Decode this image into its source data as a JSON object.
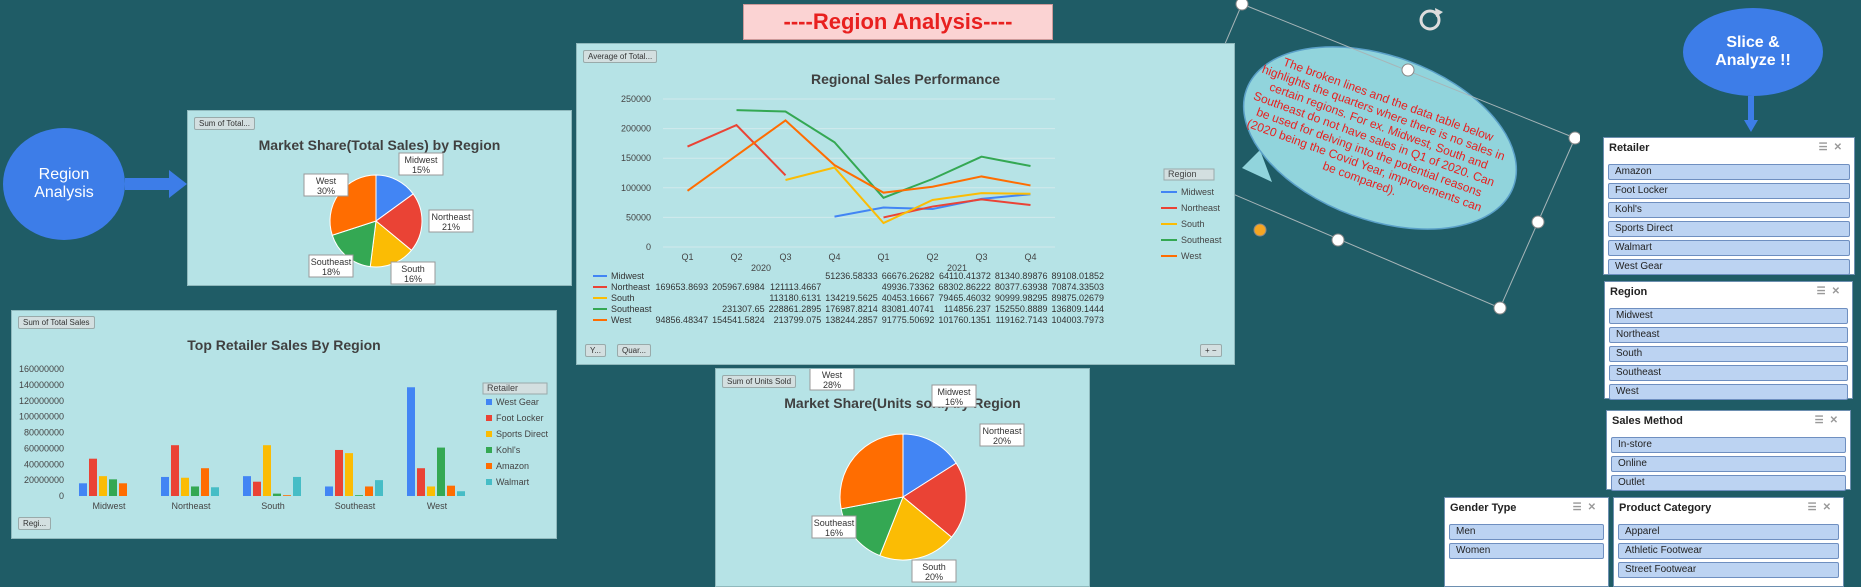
{
  "page_title": "----Region Analysis----",
  "left_bubble": "Region Analysis",
  "right_bubble": "Slice & Analyze !!",
  "callout": "The broken lines and the data table below highlights the quarters where there is no sales in certain regions. For ex. Midwest, South and Southeast do not have sales in Q1 of 2020. Can be used for delving into the potential reasons (2020 being the Covid Year, improvements can be compared).",
  "colors": {
    "Midwest": "#4285f4",
    "Northeast": "#ea4335",
    "South": "#fbbc04",
    "Southeast": "#34a853",
    "West": "#ff6d01",
    "Walmart": "#46bdc6"
  },
  "chart_data": [
    {
      "type": "pie",
      "field_button": "Sum of Total...",
      "title": "Market Share(Total Sales) by Region",
      "labels": [
        "Midwest",
        "Northeast",
        "South",
        "Southeast",
        "West"
      ],
      "values": [
        15,
        21,
        16,
        18,
        30
      ],
      "value_labels": [
        "15%",
        "21%",
        "16%",
        "18%",
        "30%"
      ]
    },
    {
      "type": "line",
      "field_button": "Average of Total...",
      "title": "Regional Sales Performance",
      "years": [
        "2020",
        "2021"
      ],
      "categories": [
        "Q1",
        "Q2",
        "Q3",
        "Q4",
        "Q1",
        "Q2",
        "Q3",
        "Q4"
      ],
      "yticks": [
        "250000",
        "200000",
        "150000",
        "100000",
        "50000",
        "0"
      ],
      "ylim": [
        0,
        250000
      ],
      "legend_button": "Region",
      "axis_buttons": [
        "Y...",
        "Quar..."
      ],
      "series": [
        {
          "name": "Midwest",
          "values": [
            null,
            null,
            null,
            51236.58333,
            66676.26282,
            64110.41372,
            81340.89876,
            89108.01852
          ],
          "labels": [
            "",
            "",
            "",
            "51236.58333",
            "66676.26282",
            "64110.41372",
            "81340.89876",
            "89108.01852"
          ]
        },
        {
          "name": "Northeast",
          "values": [
            169653.8693,
            205967.6984,
            121113.4667,
            null,
            49936.73362,
            68302.86222,
            80377.63938,
            70874.33503
          ],
          "labels": [
            "169653.8693",
            "205967.6984",
            "121113.4667",
            "",
            "49936.73362",
            "68302.86222",
            "80377.63938",
            "70874.33503"
          ]
        },
        {
          "name": "South",
          "values": [
            null,
            null,
            113180.6131,
            134219.5625,
            40453.16667,
            79465.46032,
            90999.98295,
            89875.02679
          ],
          "labels": [
            "",
            "",
            "113180.6131",
            "134219.5625",
            "40453.16667",
            "79465.46032",
            "90999.98295",
            "89875.02679"
          ]
        },
        {
          "name": "Southeast",
          "values": [
            null,
            231307.65,
            228861.2895,
            176987.8214,
            83081.40741,
            114856.237,
            152550.8889,
            136809.1444
          ],
          "labels": [
            "",
            "231307.65",
            "228861.2895",
            "176987.8214",
            "83081.40741",
            "114856.237",
            "152550.8889",
            "136809.1444"
          ]
        },
        {
          "name": "West",
          "values": [
            94856.48347,
            154541.5824,
            213799.075,
            138244.2857,
            91775.50692,
            101760.1351,
            119162.7143,
            104003.7973
          ],
          "labels": [
            "94856.48347",
            "154541.5824",
            "213799.075",
            "138244.2857",
            "91775.50692",
            "101760.1351",
            "119162.7143",
            "104003.7973"
          ]
        }
      ]
    },
    {
      "type": "bar",
      "field_button": "Sum of Total Sales",
      "title": "Top Retailer Sales By Region",
      "categories": [
        "Midwest",
        "Northeast",
        "South",
        "Southeast",
        "West"
      ],
      "yticks": [
        "160000000",
        "140000000",
        "120000000",
        "100000000",
        "80000000",
        "60000000",
        "40000000",
        "20000000",
        "0"
      ],
      "ylim": [
        0,
        160000000
      ],
      "legend_button": "Retailer",
      "axis_button": "Regi...",
      "series": [
        {
          "name": "West Gear",
          "color": "#4285f4",
          "values": [
            16000000,
            24000000,
            25000000,
            12000000,
            137000000
          ]
        },
        {
          "name": "Foot Locker",
          "color": "#ea4335",
          "values": [
            47000000,
            64000000,
            18000000,
            58000000,
            35000000
          ]
        },
        {
          "name": "Sports Direct",
          "color": "#fbbc04",
          "values": [
            25000000,
            23000000,
            64000000,
            54000000,
            12000000
          ]
        },
        {
          "name": "Kohl's",
          "color": "#34a853",
          "values": [
            21000000,
            12000000,
            3000000,
            1000000,
            61000000
          ]
        },
        {
          "name": "Amazon",
          "color": "#ff6d01",
          "values": [
            16000000,
            35000000,
            1000000,
            12000000,
            13000000
          ]
        },
        {
          "name": "Walmart",
          "color": "#46bdc6",
          "values": [
            0,
            11000000,
            24000000,
            20000000,
            6000000
          ]
        }
      ]
    },
    {
      "type": "pie",
      "field_button": "Sum of Units Sold",
      "title": "Market Share(Units sold) by Region",
      "labels": [
        "Midwest",
        "Northeast",
        "South",
        "Southeast",
        "West"
      ],
      "values": [
        16,
        20,
        20,
        16,
        28
      ],
      "value_labels": [
        "16%",
        "20%",
        "20%",
        "16%",
        "28%"
      ]
    }
  ],
  "slicers": {
    "retailer": {
      "title": "Retailer",
      "items": [
        "Amazon",
        "Foot Locker",
        "Kohl's",
        "Sports Direct",
        "Walmart",
        "West Gear"
      ]
    },
    "region": {
      "title": "Region",
      "items": [
        "Midwest",
        "Northeast",
        "South",
        "Southeast",
        "West"
      ]
    },
    "sales_method": {
      "title": "Sales Method",
      "items": [
        "In-store",
        "Online",
        "Outlet"
      ]
    },
    "gender": {
      "title": "Gender Type",
      "items": [
        "Men",
        "Women"
      ]
    },
    "product": {
      "title": "Product Category",
      "items": [
        "Apparel",
        "Athletic Footwear",
        "Street Footwear"
      ]
    }
  }
}
